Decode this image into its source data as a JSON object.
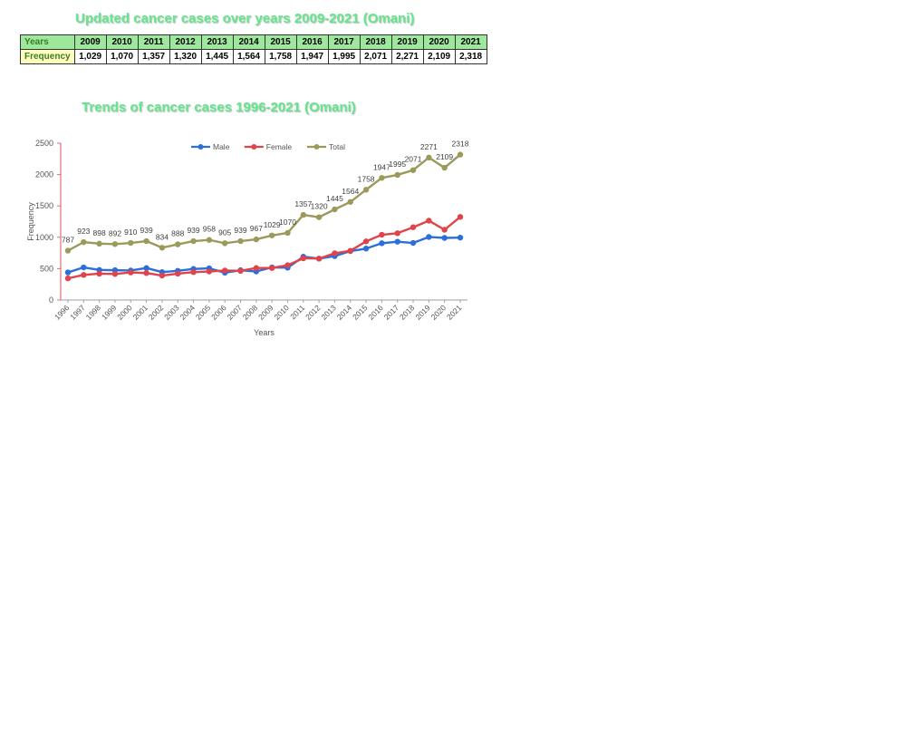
{
  "table_title": "Updated cancer cases over years 2009-2021  (Omani)",
  "table": {
    "row_header_years": "Years",
    "row_header_freq": "Frequency",
    "years": [
      "2009",
      "2010",
      "2011",
      "2012",
      "2013",
      "2014",
      "2015",
      "2016",
      "2017",
      "2018",
      "2019",
      "2020",
      "2021"
    ],
    "frequency": [
      "1,029",
      "1,070",
      "1,357",
      "1,320",
      "1,445",
      "1,564",
      "1,758",
      "1,947",
      "1,995",
      "2,071",
      "2,271",
      "2,109",
      "2,318"
    ]
  },
  "chart_title": "Trends of cancer cases 1996-2021 (Omani)",
  "chart_data": {
    "type": "line",
    "title": "",
    "xlabel": "Years",
    "ylabel": "Frequency",
    "ylim": [
      0,
      2500
    ],
    "yticks": [
      0,
      500,
      1000,
      1500,
      2000,
      2500
    ],
    "legend_position": "top-center",
    "grid": false,
    "x": [
      "1996",
      "1997",
      "1998",
      "1999",
      "2000",
      "2001",
      "2002",
      "2003",
      "2004",
      "2005",
      "2006",
      "2007",
      "2008",
      "2009",
      "2010",
      "2011",
      "2012",
      "2013",
      "2014",
      "2015",
      "2016",
      "2017",
      "2018",
      "2019",
      "2020",
      "2021"
    ],
    "series": [
      {
        "name": "Male",
        "color": "#2a6fdb",
        "values": [
          440,
          520,
          480,
          475,
          470,
          510,
          445,
          465,
          495,
          505,
          435,
          475,
          455,
          520,
          515,
          690,
          660,
          700,
          780,
          820,
          905,
          930,
          910,
          1005,
          990,
          995
        ],
        "labels": false
      },
      {
        "name": "Female",
        "color": "#e0434a",
        "values": [
          345,
          400,
          420,
          415,
          440,
          430,
          390,
          420,
          445,
          455,
          470,
          465,
          510,
          510,
          555,
          665,
          660,
          745,
          785,
          935,
          1040,
          1065,
          1160,
          1265,
          1120,
          1325
        ],
        "labels": false
      },
      {
        "name": "Total",
        "color": "#9b9a5b",
        "values": [
          787,
          923,
          898,
          892,
          910,
          939,
          834,
          888,
          939,
          958,
          905,
          939,
          967,
          1029,
          1070,
          1357,
          1320,
          1445,
          1564,
          1758,
          1947,
          1995,
          2071,
          2271,
          2109,
          2318
        ],
        "labels": true
      }
    ]
  }
}
